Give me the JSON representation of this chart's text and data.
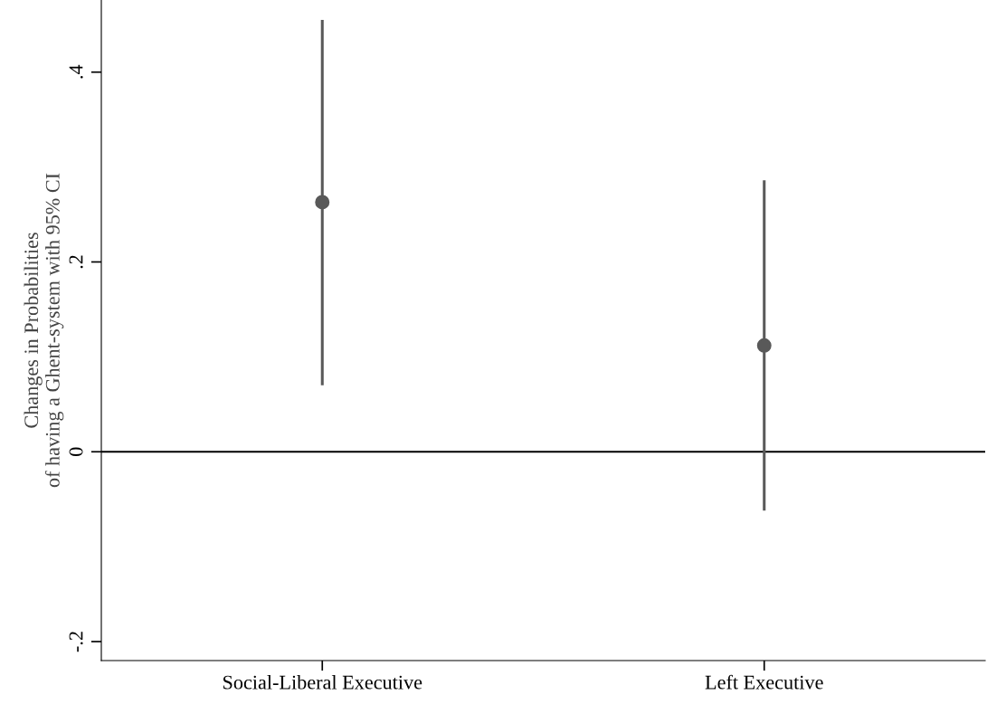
{
  "chart_data": {
    "type": "scatter",
    "ylabel": "Changes in Probabilities\nof having a Ghent-system with 95% CI",
    "categories": [
      "Social-Liberal Executive",
      "Left Executive"
    ],
    "values": [
      0.263,
      0.112
    ],
    "errors": [
      [
        0.07,
        0.455
      ],
      [
        -0.062,
        0.286
      ]
    ],
    "color": "#595959",
    "marker": "circle",
    "ylim": [
      -0.22,
      0.476
    ],
    "yticks": [
      {
        "value": -0.2,
        "label": "-.2"
      },
      {
        "value": 0,
        "label": "0"
      },
      {
        "value": 0.2,
        "label": ".2"
      },
      {
        "value": 0.4,
        "label": ".4"
      }
    ],
    "ref_lines": [
      {
        "axis": "y",
        "value": 0,
        "label": null,
        "color": "#000000"
      }
    ],
    "grid": false,
    "legend": false
  }
}
